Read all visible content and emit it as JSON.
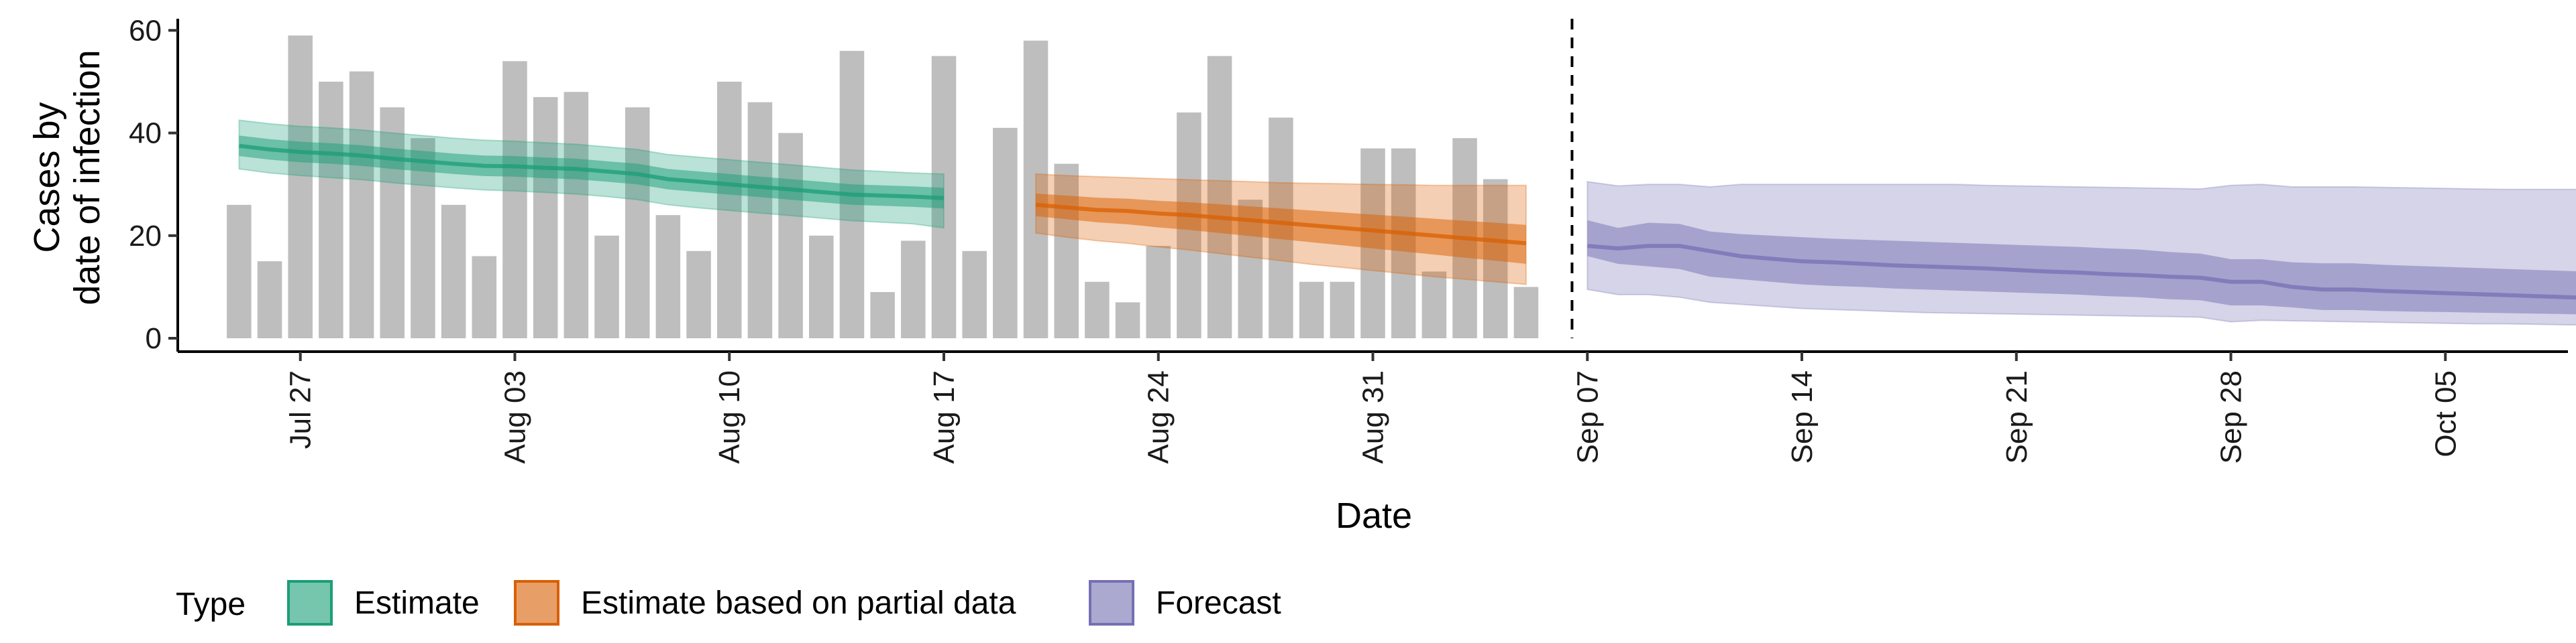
{
  "chart_data": {
    "type": "bar",
    "title": "",
    "xlabel": "Date",
    "ylabel": "Cases by date of infection",
    "ylabel_lines": [
      "Cases by",
      "date of infection"
    ],
    "ylim": [
      0,
      62
    ],
    "yticks": [
      0,
      20,
      40,
      60
    ],
    "x_start_date": "2020-07-23",
    "x_end_date": "2020-10-09",
    "xticks": [
      {
        "date": "2020-07-27",
        "label": "Jul 27"
      },
      {
        "date": "2020-08-03",
        "label": "Aug 03"
      },
      {
        "date": "2020-08-10",
        "label": "Aug 10"
      },
      {
        "date": "2020-08-17",
        "label": "Aug 17"
      },
      {
        "date": "2020-08-24",
        "label": "Aug 24"
      },
      {
        "date": "2020-08-31",
        "label": "Aug 31"
      },
      {
        "date": "2020-09-07",
        "label": "Sep 07"
      },
      {
        "date": "2020-09-14",
        "label": "Sep 14"
      },
      {
        "date": "2020-09-21",
        "label": "Sep 21"
      },
      {
        "date": "2020-09-28",
        "label": "Sep 28"
      },
      {
        "date": "2020-10-05",
        "label": "Oct 05"
      }
    ],
    "forecast_start": "2020-09-06",
    "bars": {
      "start_date": "2020-07-25",
      "color": "#bebebe",
      "values": [
        26,
        15,
        59,
        50,
        52,
        45,
        39,
        26,
        16,
        54,
        47,
        48,
        20,
        45,
        24,
        17,
        50,
        46,
        40,
        20,
        56,
        9,
        19,
        55,
        17,
        41,
        58,
        34,
        11,
        7,
        18,
        44,
        55,
        27,
        43,
        11,
        11,
        37,
        37,
        13,
        39,
        31,
        10
      ]
    },
    "series": [
      {
        "name": "Estimate",
        "color": "#1b9e77",
        "start_date": "2020-07-25",
        "median": [
          37.5,
          36.8,
          36.3,
          36,
          35.6,
          35,
          34.5,
          34,
          33.6,
          33.5,
          33.2,
          33,
          32.5,
          32,
          31,
          30.5,
          30,
          29.5,
          29,
          28.5,
          28,
          27.8,
          27.6,
          27.3
        ],
        "inner": [
          [
            35.5,
            39.5
          ],
          [
            34.8,
            38.8
          ],
          [
            34.3,
            38.3
          ],
          [
            34,
            38
          ],
          [
            33.6,
            37.6
          ],
          [
            33,
            37
          ],
          [
            32.5,
            36.5
          ],
          [
            32,
            36
          ],
          [
            31.6,
            35.6
          ],
          [
            31.5,
            35.5
          ],
          [
            31.2,
            35.2
          ],
          [
            31,
            35
          ],
          [
            30.5,
            34.5
          ],
          [
            30,
            34
          ],
          [
            29,
            33
          ],
          [
            28.5,
            32.5
          ],
          [
            28,
            32
          ],
          [
            27.5,
            31.5
          ],
          [
            27,
            31
          ],
          [
            26.5,
            30.5
          ],
          [
            26,
            30
          ],
          [
            25.8,
            29.8
          ],
          [
            25.6,
            29.6
          ],
          [
            25.3,
            29.3
          ]
        ],
        "outer": [
          [
            33,
            42.5
          ],
          [
            32.2,
            41.8
          ],
          [
            31.7,
            41.3
          ],
          [
            31.3,
            41
          ],
          [
            30.9,
            40.6
          ],
          [
            30.3,
            40
          ],
          [
            29.8,
            39.5
          ],
          [
            29.3,
            39
          ],
          [
            28.9,
            38.6
          ],
          [
            28.7,
            38.4
          ],
          [
            28.4,
            38.1
          ],
          [
            28.1,
            37.8
          ],
          [
            27.6,
            37.3
          ],
          [
            27,
            36.8
          ],
          [
            26,
            35.8
          ],
          [
            25.4,
            35.3
          ],
          [
            24.9,
            34.8
          ],
          [
            24.4,
            34.3
          ],
          [
            23.9,
            33.8
          ],
          [
            23.4,
            33.3
          ],
          [
            22.9,
            32.8
          ],
          [
            22.6,
            32.5
          ],
          [
            22.3,
            32.2
          ],
          [
            21.5,
            32
          ]
        ]
      },
      {
        "name": "Estimate based on partial data",
        "color": "#d95f02",
        "start_date": "2020-08-20",
        "median": [
          26,
          25.5,
          25,
          24.8,
          24.3,
          24,
          23.5,
          23,
          22.5,
          22,
          21.5,
          21,
          20.5,
          20,
          19.5,
          19,
          18.5
        ],
        "inner": [
          [
            23.8,
            28.2
          ],
          [
            23.2,
            27.8
          ],
          [
            22.6,
            27.4
          ],
          [
            22.2,
            27.2
          ],
          [
            21.6,
            26.8
          ],
          [
            21.1,
            26.5
          ],
          [
            20.5,
            26.1
          ],
          [
            19.9,
            25.7
          ],
          [
            19.3,
            25.3
          ],
          [
            18.7,
            24.9
          ],
          [
            18.1,
            24.5
          ],
          [
            17.5,
            24.1
          ],
          [
            16.9,
            23.7
          ],
          [
            16.3,
            23.3
          ],
          [
            15.7,
            22.9
          ],
          [
            15.1,
            22.5
          ],
          [
            14.5,
            22.1
          ]
        ],
        "outer": [
          [
            20.5,
            32
          ],
          [
            19.7,
            31.7
          ],
          [
            19,
            31.5
          ],
          [
            18.5,
            31.3
          ],
          [
            17.8,
            31.1
          ],
          [
            17.2,
            30.9
          ],
          [
            16.5,
            30.7
          ],
          [
            15.8,
            30.5
          ],
          [
            15.1,
            30.3
          ],
          [
            14.4,
            30.2
          ],
          [
            13.8,
            30.1
          ],
          [
            13.2,
            30
          ],
          [
            12.6,
            29.9
          ],
          [
            12,
            29.8
          ],
          [
            11.5,
            29.8
          ],
          [
            11,
            29.8
          ],
          [
            10.5,
            29.8
          ]
        ]
      },
      {
        "name": "Forecast",
        "color": "#7570b3",
        "start_date": "2020-09-07",
        "median": [
          18,
          17.5,
          18,
          18,
          17,
          16,
          15.5,
          15,
          14.8,
          14.5,
          14.2,
          14,
          13.8,
          13.6,
          13.3,
          13,
          12.8,
          12.5,
          12.3,
          12,
          11.8,
          11,
          11,
          10,
          9.5,
          9.5,
          9.2,
          9,
          8.8,
          8.6,
          8.4,
          8.2,
          8,
          7.8,
          7.5,
          7.3,
          7.3,
          7.2,
          7.2,
          7.2,
          7.1,
          7.1
        ],
        "inner": [
          [
            16,
            23
          ],
          [
            14.5,
            21.5
          ],
          [
            14,
            22.5
          ],
          [
            13.5,
            22.3
          ],
          [
            12,
            20.8
          ],
          [
            11.5,
            20.3
          ],
          [
            11,
            20
          ],
          [
            10.5,
            19.7
          ],
          [
            10.2,
            19.4
          ],
          [
            10,
            19.2
          ],
          [
            9.7,
            19
          ],
          [
            9.5,
            18.8
          ],
          [
            9.3,
            18.6
          ],
          [
            9.1,
            18.4
          ],
          [
            8.9,
            18.2
          ],
          [
            8.7,
            18
          ],
          [
            8.5,
            17.8
          ],
          [
            8.2,
            17.5
          ],
          [
            8,
            17.3
          ],
          [
            7.6,
            16.8
          ],
          [
            7.4,
            16.5
          ],
          [
            6.4,
            15.4
          ],
          [
            6.4,
            15.4
          ],
          [
            6,
            14.8
          ],
          [
            5.5,
            14.6
          ],
          [
            5.5,
            14.6
          ],
          [
            5.3,
            14.3
          ],
          [
            5.2,
            14.1
          ],
          [
            5.1,
            13.9
          ],
          [
            5,
            13.7
          ],
          [
            4.9,
            13.5
          ],
          [
            4.8,
            13.3
          ],
          [
            4.7,
            13.1
          ],
          [
            4.6,
            12.9
          ],
          [
            4.4,
            12.7
          ],
          [
            4.3,
            12.5
          ],
          [
            4.3,
            12.5
          ],
          [
            4.2,
            12.4
          ],
          [
            4.2,
            12.4
          ],
          [
            4.1,
            12.4
          ],
          [
            4.1,
            12.3
          ],
          [
            4,
            12.3
          ]
        ],
        "outer": [
          [
            9.5,
            30.5
          ],
          [
            8.5,
            29.7
          ],
          [
            8.5,
            30
          ],
          [
            8,
            30
          ],
          [
            7,
            29.5
          ],
          [
            6.6,
            30
          ],
          [
            6.2,
            30
          ],
          [
            5.8,
            30
          ],
          [
            5.6,
            30
          ],
          [
            5.4,
            30
          ],
          [
            5.2,
            30
          ],
          [
            5,
            30
          ],
          [
            4.9,
            30
          ],
          [
            4.8,
            29.8
          ],
          [
            4.7,
            29.7
          ],
          [
            4.6,
            29.6
          ],
          [
            4.5,
            29.5
          ],
          [
            4.4,
            29.4
          ],
          [
            4.3,
            29.3
          ],
          [
            4.2,
            29.2
          ],
          [
            4.1,
            29.1
          ],
          [
            3.2,
            29.8
          ],
          [
            3.5,
            30
          ],
          [
            3.4,
            29.5
          ],
          [
            3.3,
            29.5
          ],
          [
            3.2,
            29.5
          ],
          [
            3.1,
            29.4
          ],
          [
            3,
            29.3
          ],
          [
            2.9,
            29.2
          ],
          [
            2.8,
            29.1
          ],
          [
            2.8,
            29
          ],
          [
            2.7,
            29
          ],
          [
            2.6,
            29
          ],
          [
            2.6,
            29
          ],
          [
            2.5,
            29
          ],
          [
            2.4,
            29
          ],
          [
            2.4,
            29
          ],
          [
            2.3,
            29
          ],
          [
            2.3,
            29
          ],
          [
            2.2,
            29
          ],
          [
            2.2,
            29
          ],
          [
            2.2,
            29
          ]
        ]
      }
    ],
    "legend": {
      "title": "Type",
      "position": "bottom-left",
      "items": [
        {
          "label": "Estimate",
          "color": "#1b9e77"
        },
        {
          "label": "Estimate based on partial data",
          "color": "#d95f02"
        },
        {
          "label": "Forecast",
          "color": "#7570b3"
        }
      ]
    },
    "grid": false
  }
}
